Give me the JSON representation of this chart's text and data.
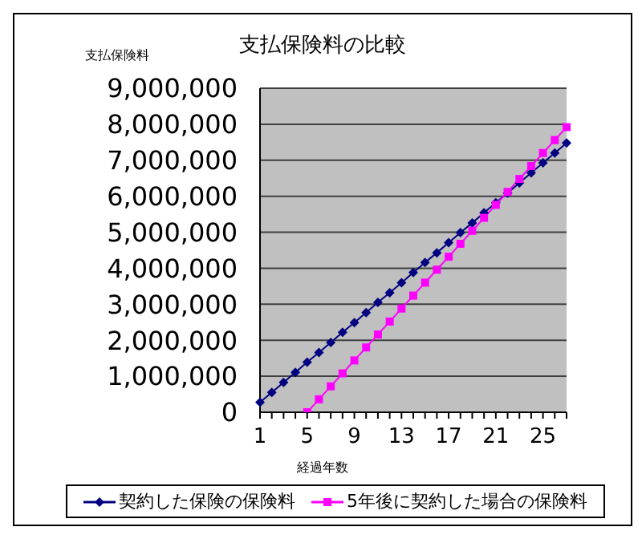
{
  "chart_data": {
    "type": "line",
    "title": "支払保険料の比較",
    "ylabel": "支払保険料",
    "xlabel": "経過年数",
    "categories": [
      "1",
      null,
      null,
      null,
      "5",
      null,
      null,
      null,
      "9",
      null,
      null,
      null,
      "13",
      null,
      null,
      null,
      "17",
      null,
      null,
      null,
      "21",
      null,
      null,
      null,
      "25",
      null,
      null
    ],
    "series": [
      {
        "name": "契約した保険の保険料",
        "color": "#000080",
        "marker": "diamond",
        "values": [
          280000,
          550000,
          830000,
          1110000,
          1390000,
          1660000,
          1940000,
          2220000,
          2490000,
          2770000,
          3050000,
          3320000,
          3600000,
          3880000,
          4160000,
          4430000,
          4710000,
          4990000,
          5260000,
          5540000,
          5820000,
          6090000,
          6370000,
          6650000,
          6930000,
          7200000,
          7480000
        ]
      },
      {
        "name": "5年後に契約した場合の保険料",
        "color": "#ff00ff",
        "marker": "square",
        "values": [
          null,
          null,
          null,
          null,
          0,
          360000,
          720000,
          1080000,
          1440000,
          1800000,
          2160000,
          2520000,
          2880000,
          3240000,
          3600000,
          3960000,
          4320000,
          4680000,
          5040000,
          5400000,
          5760000,
          6120000,
          6480000,
          6840000,
          7200000,
          7560000,
          7920000
        ]
      }
    ],
    "ylim": [
      0,
      9000000
    ],
    "yticks": [
      0,
      {
        "value": 1000000,
        "label": "1,000,000"
      },
      {
        "value": 2000000,
        "label": "2,000,000"
      },
      {
        "value": 3000000,
        "label": "3,000,000"
      },
      {
        "value": 4000000,
        "label": "4,000,000"
      },
      {
        "value": 5000000,
        "label": "5,000,000"
      },
      {
        "value": 6000000,
        "label": "6,000,000"
      },
      {
        "value": 7000000,
        "label": "7,000,000"
      },
      {
        "value": 8000000,
        "label": "8,000,000"
      },
      {
        "value": 9000000,
        "label": "9,000,000"
      }
    ],
    "grid": "y",
    "legend": "bottom"
  }
}
